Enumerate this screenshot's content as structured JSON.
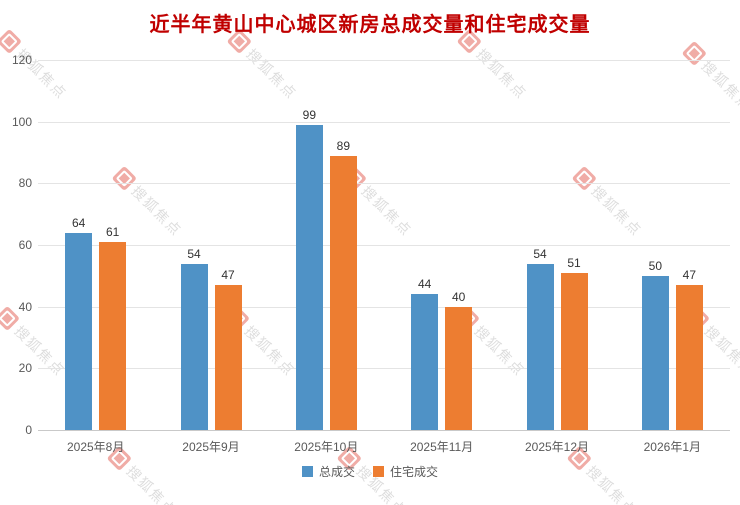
{
  "title": "近半年黄山中心城区新房总成交量和住宅成交量",
  "watermark": {
    "brand": "搜狐焦点"
  },
  "colors": {
    "title": "#c00000",
    "background": "#ffffff",
    "grid": "#e4e4e4",
    "axis_text": "#595959",
    "watermark_icon": "#dd3b2e",
    "watermark_text": "#b0b0b0"
  },
  "chart_data": {
    "type": "bar",
    "title": "近半年黄山中心城区新房总成交量和住宅成交量",
    "categories": [
      "2025年8月",
      "2025年9月",
      "2025年10月",
      "2025年11月",
      "2025年12月",
      "2026年1月"
    ],
    "series": [
      {
        "name": "总成交",
        "color": "#4f92c6",
        "values": [
          64,
          54,
          99,
          44,
          54,
          50
        ]
      },
      {
        "name": "住宅成交",
        "color": "#ed7d31",
        "values": [
          61,
          47,
          89,
          40,
          51,
          47
        ]
      }
    ],
    "xlabel": "",
    "ylabel": "",
    "ylim": [
      0,
      120
    ],
    "yticks": [
      0,
      20,
      40,
      60,
      80,
      100,
      120
    ],
    "grid": true,
    "data_labels": true,
    "legend_position": "bottom"
  }
}
